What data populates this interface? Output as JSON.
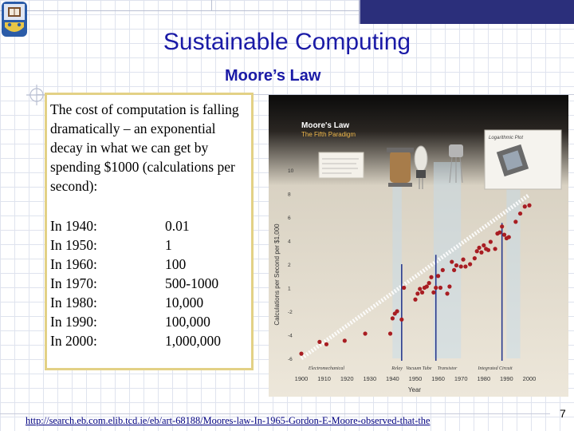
{
  "slide": {
    "title": "Sustainable Computing",
    "subtitle": "Moore’s Law",
    "intro": "The cost of computation is falling dramatically – an exponential decay in what we can get by spending $1000 (calculations per second):",
    "rows": [
      {
        "year": "In 1940:",
        "value": "0.01"
      },
      {
        "year": "In 1950:",
        "value": "1"
      },
      {
        "year": "In 1960:",
        "value": "100"
      },
      {
        "year": "In 1970:",
        "value": "500-1000"
      },
      {
        "year": "In 1980:",
        "value": "10,000"
      },
      {
        "year": "In 1990:",
        "value": "100,000"
      },
      {
        "year": "In 2000:",
        "value": "1,000,000"
      }
    ],
    "footer_link": "http://search.eb.com.elib.tcd.ie/eb/art-68188/Moores-law-In-1965-Gordon-E-Moore-observed-that-the",
    "page_number": "7"
  },
  "chart_data": {
    "type": "scatter",
    "title": "Moore's Law",
    "subtitle": "The Fifth Paradigm",
    "xlabel": "Year",
    "ylabel": "Calculations per Second per $1,000",
    "log_scale_label": "Logarithmic Plot",
    "xlim": [
      1900,
      2000
    ],
    "ylim": [
      -6,
      10
    ],
    "y_log": true,
    "x_ticks": [
      "1900",
      "1910",
      "1920",
      "1930",
      "1940",
      "1950",
      "1960",
      "1970",
      "1980",
      "1990",
      "2000"
    ],
    "y_ticks": [
      {
        "value": 10,
        "label": "10"
      },
      {
        "value": 8,
        "label": "8"
      },
      {
        "value": 6,
        "label": "6"
      },
      {
        "value": 4,
        "label": "4"
      },
      {
        "value": 2,
        "label": "2"
      },
      {
        "value": 0,
        "label": "1"
      },
      {
        "value": -2,
        "label": "-2"
      },
      {
        "value": -4,
        "label": "-4"
      },
      {
        "value": -6,
        "label": "-6"
      }
    ],
    "paradigms": [
      {
        "name": "Electromechanical",
        "start": 1900,
        "end": 1940
      },
      {
        "name": "Relay",
        "start": 1940,
        "end": 1944
      },
      {
        "name": "Vacuum Tube",
        "start": 1945,
        "end": 1958
      },
      {
        "name": "Transistor",
        "start": 1958,
        "end": 1970
      },
      {
        "name": "Integrated Circuit",
        "start": 1970,
        "end": 2000
      }
    ],
    "points": [
      [
        1900,
        -5.6
      ],
      [
        1908,
        -4.6
      ],
      [
        1911,
        -4.8
      ],
      [
        1919,
        -4.5
      ],
      [
        1928,
        -3.9
      ],
      [
        1939,
        -3.9
      ],
      [
        1940,
        -2.6
      ],
      [
        1941,
        -2.2
      ],
      [
        1942,
        -2.0
      ],
      [
        1944,
        -2.7
      ],
      [
        1945,
        0.0
      ],
      [
        1950,
        -1.0
      ],
      [
        1951,
        -0.5
      ],
      [
        1952,
        -0.1
      ],
      [
        1953,
        -0.4
      ],
      [
        1954,
        0.0
      ],
      [
        1955,
        0.1
      ],
      [
        1956,
        0.4
      ],
      [
        1957,
        0.9
      ],
      [
        1958,
        -0.4
      ],
      [
        1959,
        0.0
      ],
      [
        1960,
        1.0
      ],
      [
        1961,
        0.0
      ],
      [
        1962,
        1.5
      ],
      [
        1964,
        -0.5
      ],
      [
        1965,
        0.1
      ],
      [
        1966,
        2.2
      ],
      [
        1967,
        1.5
      ],
      [
        1968,
        1.9
      ],
      [
        1970,
        1.8
      ],
      [
        1971,
        2.4
      ],
      [
        1972,
        1.8
      ],
      [
        1974,
        2.0
      ],
      [
        1976,
        2.5
      ],
      [
        1977,
        3.1
      ],
      [
        1978,
        3.4
      ],
      [
        1979,
        3.0
      ],
      [
        1980,
        3.6
      ],
      [
        1981,
        3.3
      ],
      [
        1982,
        3.2
      ],
      [
        1983,
        3.9
      ],
      [
        1985,
        3.3
      ],
      [
        1986,
        4.6
      ],
      [
        1987,
        4.7
      ],
      [
        1988,
        5.2
      ],
      [
        1989,
        4.5
      ],
      [
        1990,
        4.2
      ],
      [
        1991,
        4.3
      ],
      [
        1994,
        5.6
      ],
      [
        1996,
        6.3
      ],
      [
        1998,
        6.9
      ],
      [
        2000,
        7.0
      ]
    ],
    "trend": {
      "start": [
        1900,
        -6.0
      ],
      "end": [
        2000,
        7.9
      ]
    },
    "colors": {
      "point": "#a81d22",
      "trend": "#ffffff",
      "band": "#c4dbee",
      "panel_top": "#0b0b0b",
      "panel_bottom": "#ece6d8",
      "marker": "#2a3b8f"
    }
  }
}
